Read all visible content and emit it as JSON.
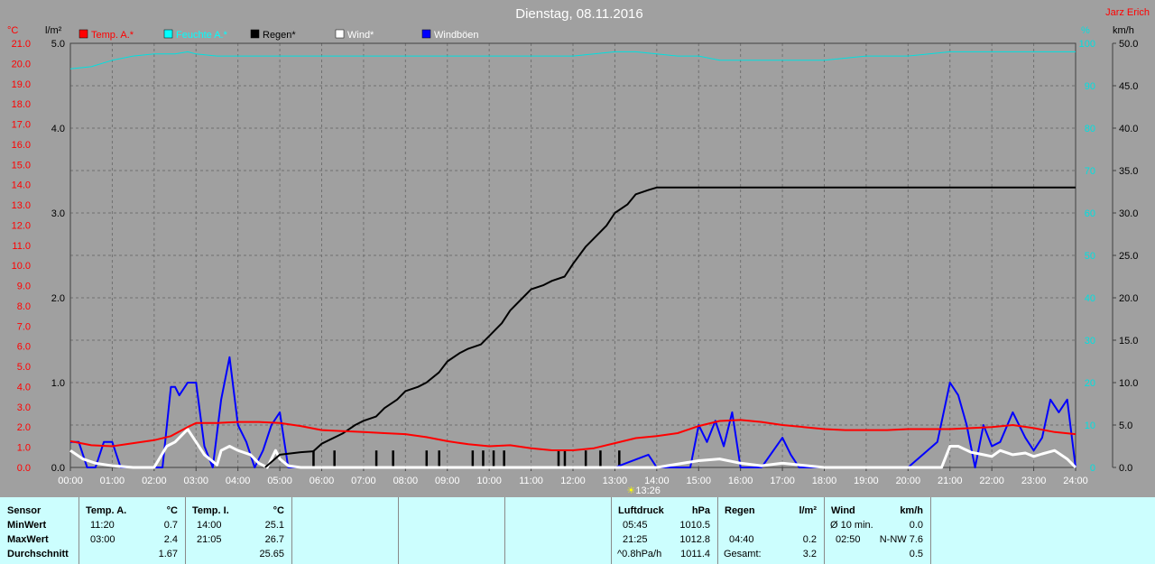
{
  "chart_data": {
    "type": "line",
    "title": "Dienstag, 08.11.2016",
    "author": "Jarz Erich",
    "x_ticks": [
      "00:00",
      "01:00",
      "02:00",
      "03:00",
      "04:00",
      "05:00",
      "06:00",
      "07:00",
      "08:00",
      "09:00",
      "10:00",
      "11:00",
      "12:00",
      "13:00",
      "14:00",
      "15:00",
      "16:00",
      "17:00",
      "18:00",
      "19:00",
      "20:00",
      "21:00",
      "22:00",
      "23:00",
      "24:00"
    ],
    "x_range_hours": [
      0,
      24
    ],
    "axis_temp": {
      "unit": "°C",
      "range": [
        0,
        21
      ],
      "ticks": [
        "0.0",
        "1.0",
        "2.0",
        "3.0",
        "4.0",
        "5.0",
        "6.0",
        "7.0",
        "8.0",
        "9.0",
        "10.0",
        "11.0",
        "12.0",
        "13.0",
        "14.0",
        "15.0",
        "16.0",
        "17.0",
        "18.0",
        "19.0",
        "20.0",
        "21.0"
      ]
    },
    "axis_rain": {
      "unit": "l/m²",
      "range": [
        0,
        5
      ],
      "ticks": [
        "0.0",
        "1.0",
        "2.0",
        "3.0",
        "4.0",
        "5.0"
      ]
    },
    "axis_humidity": {
      "unit": "%",
      "range": [
        0,
        100
      ],
      "ticks": [
        "0",
        "10",
        "20",
        "30",
        "40",
        "50",
        "60",
        "70",
        "80",
        "90",
        "100"
      ]
    },
    "axis_wind": {
      "unit": "km/h",
      "range": [
        0,
        50
      ],
      "ticks": [
        "0.0",
        "5.0",
        "10.0",
        "15.0",
        "20.0",
        "25.0",
        "30.0",
        "35.0",
        "40.0",
        "45.0",
        "50.0"
      ]
    },
    "marker": {
      "label": "13:26",
      "hour": 13.43
    },
    "colors": {
      "temp": "#ff0000",
      "humidity": "#00e0e0",
      "rain": "#000000",
      "wind": "#ffffff",
      "gust": "#0000ff",
      "grid": "#707070"
    },
    "series": [
      {
        "name": "Temp. A.*",
        "axis": "temp",
        "x": [
          0,
          0.5,
          1,
          1.5,
          2,
          2.4,
          2.8,
          3,
          3.5,
          4,
          4.5,
          5,
          5.5,
          6,
          6.5,
          7,
          7.5,
          8,
          8.5,
          9,
          9.5,
          10,
          10.5,
          11,
          11.5,
          12,
          12.5,
          13,
          13.5,
          14,
          14.5,
          15,
          15.5,
          16,
          16.5,
          17,
          17.5,
          18,
          18.5,
          19,
          19.5,
          20,
          20.5,
          21,
          21.5,
          22,
          22.5,
          23,
          23.5,
          24
        ],
        "y": [
          1.3,
          1.1,
          1.05,
          1.2,
          1.35,
          1.55,
          2.0,
          2.2,
          2.2,
          2.25,
          2.25,
          2.2,
          2.05,
          1.85,
          1.8,
          1.75,
          1.7,
          1.65,
          1.5,
          1.3,
          1.15,
          1.05,
          1.1,
          0.95,
          0.85,
          0.85,
          0.95,
          1.2,
          1.45,
          1.55,
          1.7,
          2.05,
          2.3,
          2.35,
          2.25,
          2.1,
          2.0,
          1.9,
          1.85,
          1.85,
          1.85,
          1.9,
          1.9,
          1.9,
          1.95,
          2.0,
          2.1,
          1.95,
          1.75,
          1.65
        ]
      },
      {
        "name": "Feuchte A.*",
        "axis": "humidity",
        "x": [
          0,
          0.5,
          1,
          1.5,
          2,
          2.5,
          2.8,
          3,
          3.5,
          4,
          5,
          6,
          7,
          8,
          9,
          10,
          11,
          12,
          12.5,
          13,
          13.5,
          14,
          14.5,
          15,
          15.5,
          16,
          17,
          18,
          19,
          20,
          21,
          22,
          23,
          24
        ],
        "y": [
          94,
          94.5,
          96,
          97,
          97.5,
          97.5,
          98,
          97.5,
          97,
          97,
          97,
          97,
          97,
          97,
          97,
          97,
          97,
          97,
          97.5,
          98,
          98,
          97.5,
          97,
          97,
          96,
          96,
          96,
          96,
          97,
          97,
          98,
          98,
          98,
          98
        ]
      },
      {
        "name": "Regen*",
        "axis": "rain",
        "x": [
          4.65,
          5,
          5.5,
          5.8,
          6,
          6.5,
          6.8,
          7,
          7.3,
          7.5,
          7.8,
          8,
          8.3,
          8.5,
          8.8,
          9,
          9.3,
          9.5,
          9.8,
          10,
          10.3,
          10.5,
          10.8,
          11,
          11.3,
          11.5,
          11.8,
          12,
          12.3,
          12.5,
          12.8,
          13,
          13.3,
          13.5,
          13.8,
          14,
          15,
          20,
          24
        ],
        "y": [
          0,
          0.15,
          0.18,
          0.19,
          0.28,
          0.4,
          0.5,
          0.55,
          0.6,
          0.7,
          0.8,
          0.9,
          0.95,
          1.0,
          1.12,
          1.25,
          1.35,
          1.4,
          1.45,
          1.55,
          1.7,
          1.85,
          2.0,
          2.1,
          2.15,
          2.2,
          2.25,
          2.4,
          2.6,
          2.7,
          2.85,
          3.0,
          3.1,
          3.22,
          3.27,
          3.3,
          3.3,
          3.3,
          3.3
        ]
      },
      {
        "name": "Wind*",
        "axis": "wind",
        "x": [
          0,
          0.3,
          0.6,
          1,
          1.5,
          2,
          2.3,
          2.5,
          2.8,
          3,
          3.2,
          3.5,
          3.6,
          3.8,
          4,
          4.3,
          4.5,
          4.7,
          4.9,
          5,
          5.2,
          5.5,
          5.8,
          6,
          14,
          15,
          15.5,
          16,
          16.5,
          17,
          18,
          20,
          20.8,
          21,
          21.2,
          21.5,
          21.8,
          22,
          22.2,
          22.5,
          22.8,
          23,
          23.2,
          23.5,
          23.8,
          24
        ],
        "y": [
          2.0,
          1.0,
          0.5,
          0.2,
          0,
          0,
          2.5,
          3.0,
          4.5,
          3.0,
          1.5,
          0.3,
          2.0,
          2.5,
          2.0,
          1.5,
          0.5,
          0,
          2.0,
          1.0,
          0.2,
          0,
          0,
          0,
          0,
          0.8,
          1.0,
          0.5,
          0.2,
          0.5,
          0,
          0,
          0,
          2.5,
          2.5,
          1.8,
          1.5,
          1.3,
          2.0,
          1.5,
          1.7,
          1.3,
          1.6,
          2.0,
          1.0,
          0
        ]
      },
      {
        "name": "Windböen",
        "axis": "wind",
        "x": [
          0,
          0.2,
          0.4,
          0.6,
          0.8,
          1,
          1.2,
          1.5,
          2,
          2.2,
          2.4,
          2.5,
          2.6,
          2.8,
          3,
          3.2,
          3.4,
          3.6,
          3.8,
          4,
          4.2,
          4.4,
          4.6,
          4.8,
          5,
          5.2,
          5.5,
          6,
          13,
          13.8,
          14,
          14.8,
          15,
          15.2,
          15.4,
          15.6,
          15.8,
          16,
          16.5,
          17,
          17.2,
          17.4,
          18,
          20,
          20.7,
          21,
          21.2,
          21.4,
          21.6,
          21.8,
          22,
          22.2,
          22.5,
          22.8,
          23,
          23.2,
          23.4,
          23.6,
          23.8,
          24
        ],
        "y": [
          3.0,
          3.0,
          0,
          0,
          3.0,
          3.0,
          0,
          0,
          0,
          0,
          9.5,
          9.5,
          8.5,
          10.0,
          10.0,
          2.5,
          0,
          8.0,
          13.0,
          5.0,
          3.0,
          0,
          2.0,
          5.0,
          6.5,
          0,
          0,
          0,
          0,
          1.5,
          0,
          0,
          5.0,
          3.0,
          5.5,
          2.5,
          6.5,
          0,
          0,
          3.5,
          1.5,
          0,
          0,
          0,
          3.0,
          10.0,
          8.5,
          5.0,
          0,
          5.0,
          2.5,
          3.0,
          6.5,
          3.5,
          2.0,
          3.5,
          8.0,
          6.5,
          8.0,
          0
        ]
      }
    ],
    "rain_events_hours": [
      5.8,
      6.3,
      7.3,
      7.7,
      8.5,
      8.8,
      9.6,
      9.85,
      10.1,
      10.35,
      11.65,
      11.8,
      12.3,
      12.65,
      13.1
    ]
  },
  "stats": {
    "headers": {
      "sensor": "Sensor",
      "temp_a": "Temp. A.",
      "temp_a_unit": "°C",
      "temp_i": "Temp. I.",
      "temp_i_unit": "°C",
      "pressure": "Luftdruck",
      "pressure_unit": "hPa",
      "rain": "Regen",
      "rain_unit": "l/m²",
      "wind": "Wind",
      "wind_unit": "km/h"
    },
    "row_labels": [
      "MinWert",
      "MaxWert",
      "Durchschnitt"
    ],
    "temp_a": {
      "min_time": "11:20",
      "min": "0.7",
      "max_time": "03:00",
      "max": "2.4",
      "avg": "1.67"
    },
    "temp_i": {
      "min_time": "14:00",
      "min": "25.1",
      "max_time": "21:05",
      "max": "26.7",
      "avg": "25.65"
    },
    "pressure": {
      "min_time": "05:45",
      "min": "1010.5",
      "max_time": "21:25",
      "max": "1012.8",
      "trend": "^0.8hPa/h",
      "avg": "1011.4"
    },
    "rain": {
      "max_time": "04:40",
      "max": "0.2",
      "total_label": "Gesamt:",
      "total": "3.2"
    },
    "wind": {
      "min_label": "Ø 10 min.",
      "min": "0.0",
      "max_time": "02:50",
      "max_dir": "N-NW 7.6",
      "avg": "0.5"
    }
  }
}
